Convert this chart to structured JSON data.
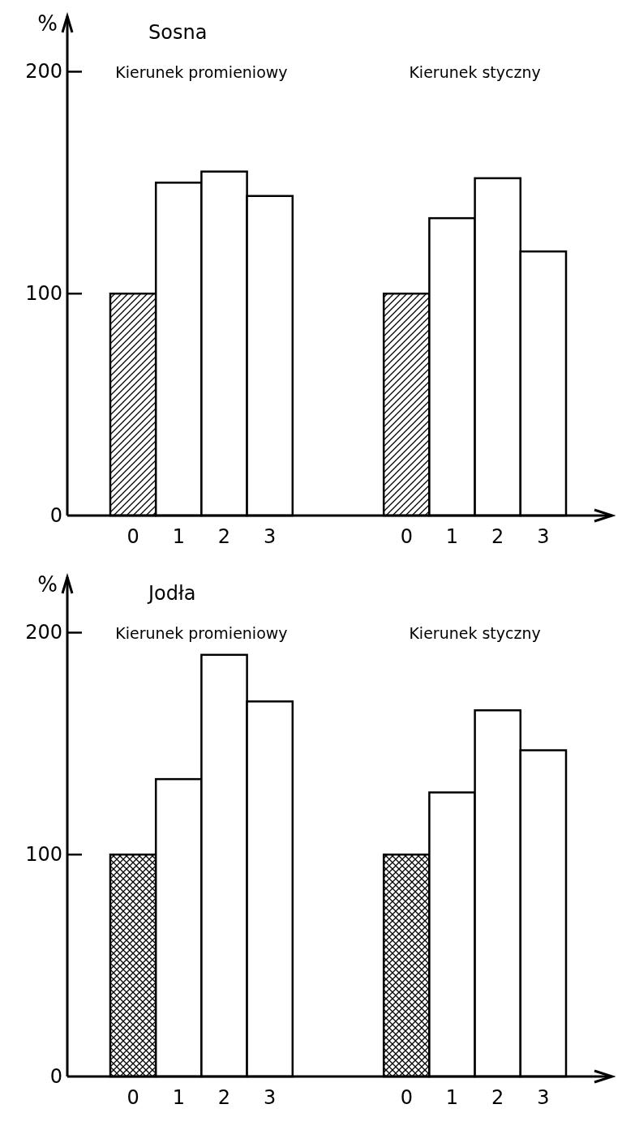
{
  "chart_data": [
    {
      "type": "bar",
      "title": "Sosna",
      "ylabel": "%",
      "categories": [
        "0",
        "1",
        "2",
        "3",
        null,
        null,
        "0",
        "1",
        "2",
        "3"
      ],
      "values": [
        100,
        150,
        155,
        144,
        null,
        null,
        100,
        134,
        152,
        119
      ],
      "colors": [
        "#000000",
        "#ffffff",
        "#ffffff",
        "#ffffff",
        null,
        null,
        "#000000",
        "#ffffff",
        "#ffffff",
        "#ffffff"
      ],
      "ylim": [
        0,
        225
      ],
      "yticks": [
        0,
        100,
        200
      ],
      "annotations": [
        "Kierunek promieniowy",
        "Kierunek styczny"
      ]
    },
    {
      "type": "bar",
      "title": "Jodła",
      "ylabel": "%",
      "categories": [
        "0",
        "1",
        "2",
        "3",
        null,
        null,
        "0",
        "1",
        "2",
        "3"
      ],
      "values": [
        100,
        134,
        190,
        169,
        null,
        null,
        100,
        128,
        165,
        147
      ],
      "colors": [
        "#000000",
        "#ffffff",
        "#ffffff",
        "#ffffff",
        null,
        null,
        "#000000",
        "#ffffff",
        "#ffffff",
        "#ffffff"
      ],
      "ylim": [
        0,
        225
      ],
      "yticks": [
        0,
        100,
        200
      ],
      "annotations": [
        "Kierunek promieniowy",
        "Kierunek styczny"
      ]
    }
  ]
}
